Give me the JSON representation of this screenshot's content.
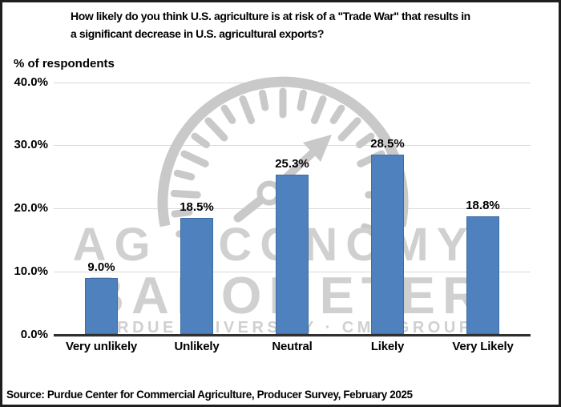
{
  "title": {
    "line1": "How likely do you think U.S. agriculture is at risk of a \"Trade War\" that results in",
    "line2": "a significant decrease in U.S. agricultural exports?"
  },
  "source": "Source: Purdue Center for Commercial Agriculture, Producer Survey, February 2025",
  "watermark": {
    "line1": "AG ECONOMY",
    "line2": "BAROMETER",
    "line3": "PURDUE UNIVERSITY · CME GROUP",
    "gauge_icon": "barometer-gauge-needle-icon"
  },
  "colors": {
    "bar": "#4e81bd",
    "bar_border": "#3d6da3",
    "gridline": "#d9d9d9",
    "axis_line": "#2f2f2f",
    "watermark_gauge": "#c9c9c9",
    "watermark_text": "#d0d0d0",
    "frame_border": "#1e1e1e",
    "text": "#000000"
  },
  "chart_data": {
    "type": "bar",
    "title": "How likely do you think U.S. agriculture is at risk of a \"Trade War\" that results in a significant decrease in U.S. agricultural exports?",
    "categories": [
      "Very unlikely",
      "Unlikely",
      "Neutral",
      "Likely",
      "Very Likely"
    ],
    "values": [
      9.0,
      18.5,
      25.3,
      28.5,
      18.8
    ],
    "value_labels": [
      "9.0%",
      "18.5%",
      "25.3%",
      "28.5%",
      "18.8%"
    ],
    "ylabel": "% of respondents",
    "ylim": [
      0,
      40
    ],
    "yticks": [
      "0.0%",
      "10.0%",
      "20.0%",
      "30.0%",
      "40.0%"
    ],
    "grid": true,
    "legend": false
  }
}
